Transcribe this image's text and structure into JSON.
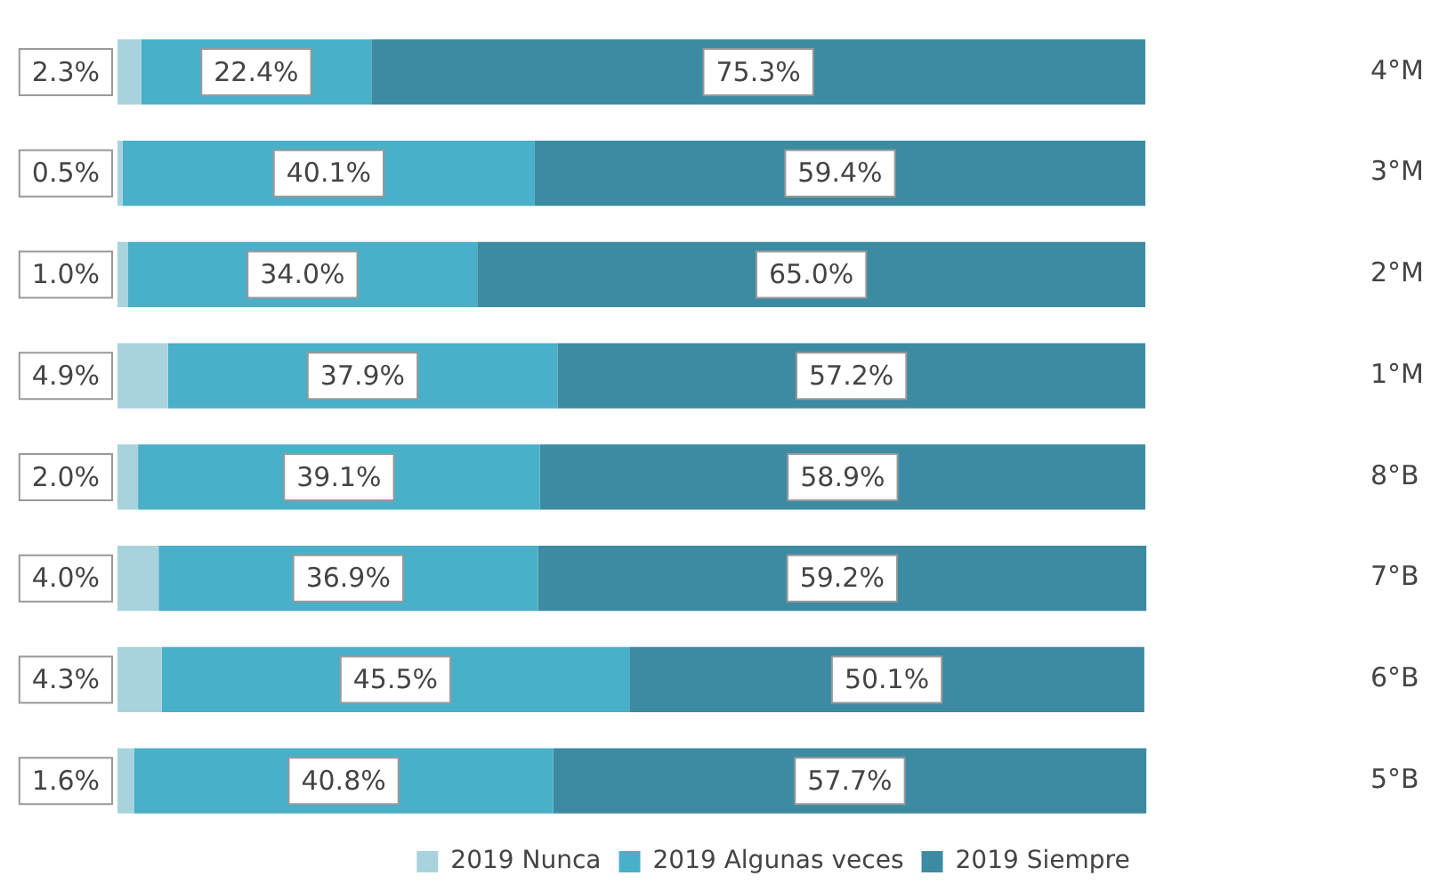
{
  "chart_data": {
    "type": "bar",
    "orientation": "horizontal",
    "stacked": true,
    "legend": "bottom",
    "categories": [
      "4°M",
      "3°M",
      "2°M",
      "1°M",
      "8°B",
      "7°B",
      "6°B",
      "5°B"
    ],
    "series": [
      {
        "name": "2019 Nunca",
        "color": "#a8d3dd",
        "values": [
          2.3,
          0.5,
          1.0,
          4.9,
          2.0,
          4.0,
          4.3,
          1.6
        ],
        "value_labels": [
          "2.3%",
          "0.5%",
          "1.0%",
          "4.9%",
          "2.0%",
          "4.0%",
          "4.3%",
          "1.6%"
        ]
      },
      {
        "name": "2019 Algunas veces",
        "color": "#4aafc8",
        "values": [
          22.4,
          40.1,
          34.0,
          37.9,
          39.1,
          36.9,
          45.5,
          40.8
        ],
        "value_labels": [
          "22.4%",
          "40.1%",
          "34.0%",
          "37.9%",
          "39.1%",
          "36.9%",
          "45.5%",
          "40.8%"
        ]
      },
      {
        "name": "2019 Siempre",
        "color": "#3c8ba3",
        "values": [
          75.3,
          59.4,
          65.0,
          57.2,
          58.9,
          59.2,
          50.1,
          57.7
        ],
        "value_labels": [
          "75.3%",
          "59.4%",
          "65.0%",
          "57.2%",
          "58.9%",
          "59.2%",
          "50.1%",
          "57.7%"
        ]
      }
    ]
  }
}
